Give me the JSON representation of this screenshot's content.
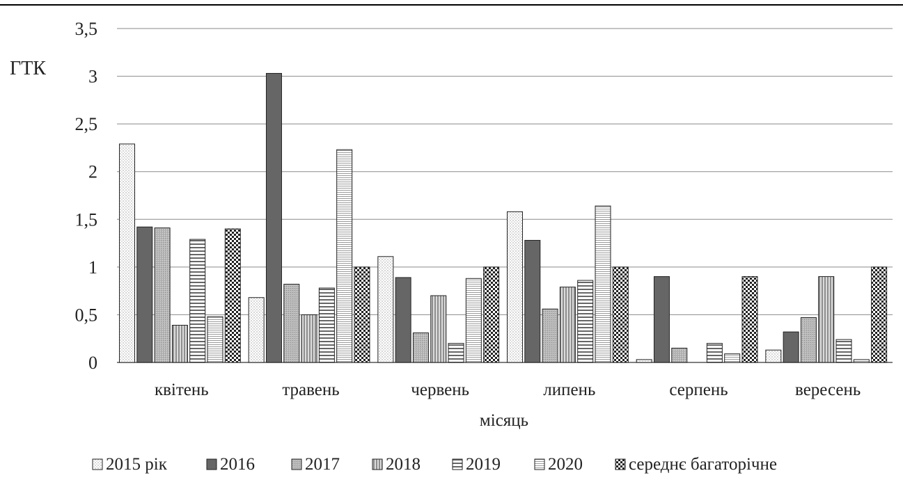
{
  "chart_data": {
    "type": "bar",
    "ylabel": "ГТК",
    "xlabel": "місяць",
    "ylim": [
      0,
      3.5
    ],
    "yticks": [
      "0",
      "0,5",
      "1",
      "1,5",
      "2",
      "2,5",
      "3",
      "3,5"
    ],
    "grid": true,
    "legend_position": "bottom",
    "categories": [
      "квітень",
      "травень",
      "червень",
      "липень",
      "серпень",
      "вересень"
    ],
    "series": [
      {
        "name": "2015 рік",
        "pattern": "dots",
        "values": [
          2.29,
          0.68,
          1.11,
          1.58,
          0.03,
          0.13
        ]
      },
      {
        "name": "2016",
        "pattern": "solid-dark",
        "values": [
          1.42,
          3.03,
          0.89,
          1.28,
          0.9,
          0.32
        ]
      },
      {
        "name": "2017",
        "pattern": "fine-gray",
        "values": [
          1.41,
          0.82,
          0.31,
          0.56,
          0.15,
          0.47
        ]
      },
      {
        "name": "2018",
        "pattern": "vertical-lines",
        "values": [
          0.39,
          0.5,
          0.7,
          0.79,
          0.0,
          0.9
        ]
      },
      {
        "name": "2019",
        "pattern": "horizontal-lines",
        "values": [
          1.29,
          0.78,
          0.2,
          0.86,
          0.2,
          0.24
        ]
      },
      {
        "name": "2020",
        "pattern": "fine-horizontal",
        "values": [
          0.48,
          2.23,
          0.88,
          1.64,
          0.09,
          0.03
        ]
      },
      {
        "name": "середнє багаторічне",
        "pattern": "checker",
        "values": [
          1.4,
          1.0,
          1.0,
          1.0,
          0.9,
          1.0
        ]
      }
    ]
  }
}
